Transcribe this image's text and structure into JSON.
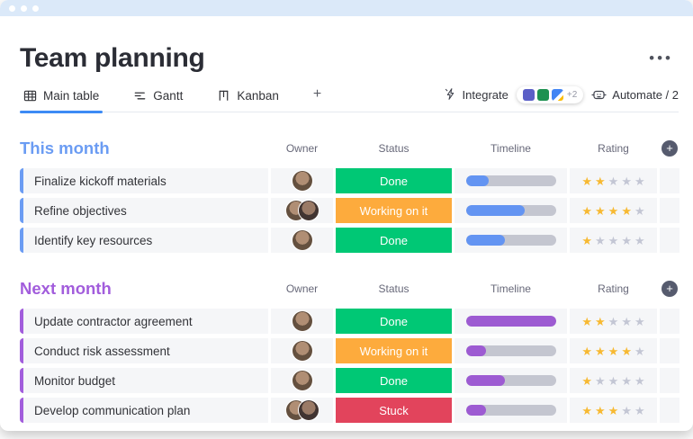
{
  "window": {
    "dot_count": 3
  },
  "header": {
    "title": "Team planning",
    "menu": "•••"
  },
  "tabs": {
    "items": [
      {
        "label": "Main table",
        "icon": "table-icon",
        "active": true
      },
      {
        "label": "Gantt",
        "icon": "gantt-icon",
        "active": false
      },
      {
        "label": "Kanban",
        "icon": "kanban-icon",
        "active": false
      }
    ],
    "add_label": "+"
  },
  "toolbar": {
    "integrate_label": "Integrate",
    "integration_apps": [
      "ms-teams-icon",
      "excel-icon",
      "google-icon"
    ],
    "integration_more": "+2",
    "automate_label": "Automate / 2"
  },
  "table": {
    "columns": [
      "Owner",
      "Status",
      "Timeline",
      "Rating"
    ],
    "add_column_label": "+",
    "rating_max": 5
  },
  "colors": {
    "topbar": "#dbe9f9",
    "tab_underline": "#3d8bf5",
    "accent_blue": "#6b9cf3",
    "accent_purple": "#a25ddc",
    "timeline_track": "#c4c6d0",
    "star_filled": "#f7b932",
    "star_empty": "#c3c6d4",
    "status": {
      "Done": "#00c875",
      "Working on it": "#fdab3d",
      "Stuck": "#e2445c"
    }
  },
  "groups": [
    {
      "name": "This month",
      "accent": "#6b9cf3",
      "timeline_fill": "#6394f2",
      "rows": [
        {
          "task": "Finalize kickoff materials",
          "owner_count": 1,
          "status": "Done",
          "timeline_pct": 25,
          "rating": 2
        },
        {
          "task": "Refine objectives",
          "owner_count": 2,
          "status": "Working on it",
          "timeline_pct": 65,
          "rating": 4
        },
        {
          "task": "Identify key resources",
          "owner_count": 1,
          "status": "Done",
          "timeline_pct": 43,
          "rating": 1
        }
      ]
    },
    {
      "name": "Next month",
      "accent": "#a25ddc",
      "timeline_fill": "#9d5bd2",
      "rows": [
        {
          "task": "Update contractor agreement",
          "owner_count": 1,
          "status": "Done",
          "timeline_pct": 100,
          "rating": 2
        },
        {
          "task": "Conduct risk assessment",
          "owner_count": 1,
          "status": "Working on it",
          "timeline_pct": 22,
          "rating": 4
        },
        {
          "task": "Monitor budget",
          "owner_count": 1,
          "status": "Done",
          "timeline_pct": 43,
          "rating": 1
        },
        {
          "task": "Develop communication plan",
          "owner_count": 2,
          "status": "Stuck",
          "timeline_pct": 22,
          "rating": 3
        }
      ]
    }
  ]
}
